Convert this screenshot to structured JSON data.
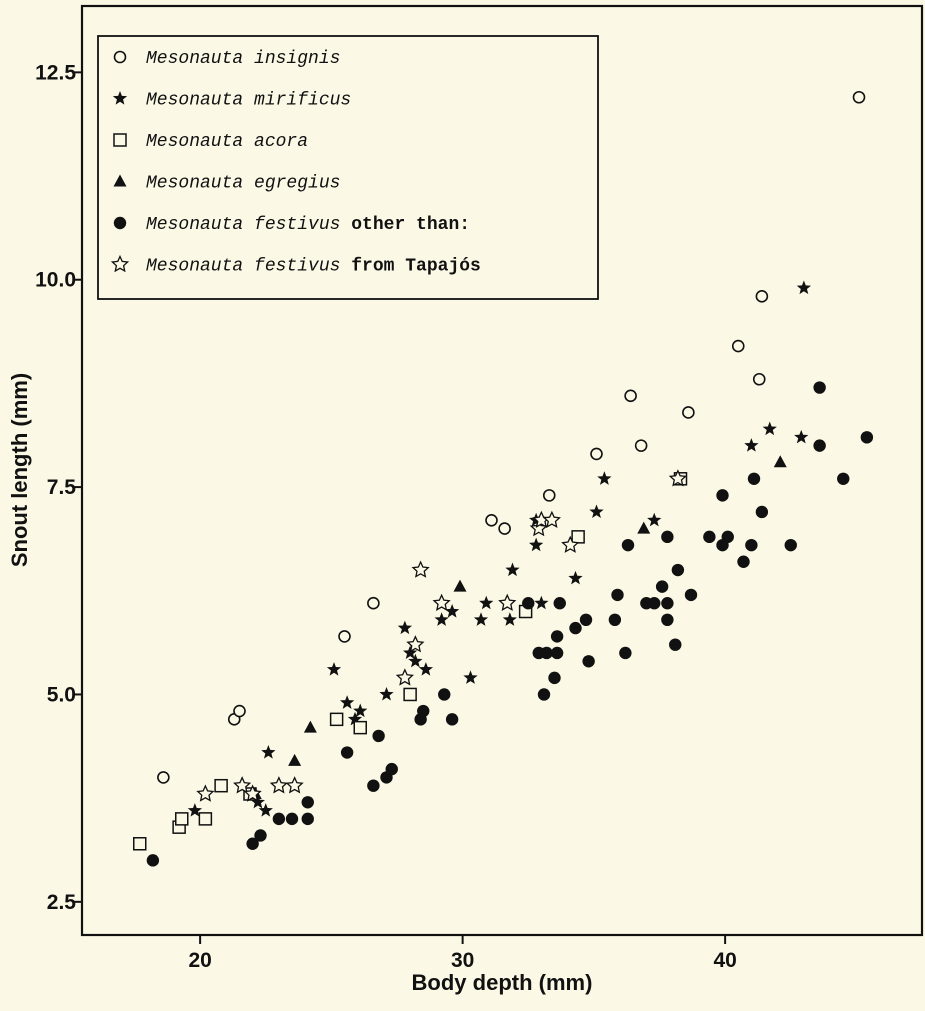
{
  "chart_data": {
    "type": "scatter",
    "xlabel": "Body depth (mm)",
    "ylabel": "Snout length (mm)",
    "xlim": [
      15.5,
      47.5
    ],
    "ylim": [
      2.1,
      13.3
    ],
    "xticks": [
      20,
      30,
      40
    ],
    "yticks": [
      2.5,
      5.0,
      7.5,
      10.0,
      12.5
    ],
    "xtick_labels": [
      "20",
      "30",
      "40"
    ],
    "ytick_labels": [
      "2.5",
      "5.0",
      "7.5",
      "10.0",
      "12.5"
    ],
    "legend_position": "top-left",
    "series": [
      {
        "marker": "open-circle",
        "legend": [
          {
            "text": "Mesonauta insignis",
            "style": "italic"
          }
        ],
        "points": [
          [
            18.6,
            4.0
          ],
          [
            21.3,
            4.7
          ],
          [
            21.5,
            4.8
          ],
          [
            25.5,
            5.7
          ],
          [
            26.6,
            6.1
          ],
          [
            31.1,
            7.1
          ],
          [
            31.6,
            7.0
          ],
          [
            33.3,
            7.4
          ],
          [
            35.1,
            7.9
          ],
          [
            36.4,
            8.6
          ],
          [
            36.8,
            8.0
          ],
          [
            38.6,
            8.4
          ],
          [
            40.5,
            9.2
          ],
          [
            41.3,
            8.8
          ],
          [
            41.4,
            9.8
          ],
          [
            45.1,
            12.2
          ]
        ]
      },
      {
        "marker": "filled-star",
        "legend": [
          {
            "text": "Mesonauta mirificus",
            "style": "italic"
          }
        ],
        "points": [
          [
            19.8,
            3.6
          ],
          [
            22.2,
            3.7
          ],
          [
            22.5,
            3.6
          ],
          [
            22.6,
            4.3
          ],
          [
            25.1,
            5.3
          ],
          [
            25.6,
            4.9
          ],
          [
            25.9,
            4.7
          ],
          [
            26.1,
            4.8
          ],
          [
            27.1,
            5.0
          ],
          [
            27.8,
            5.8
          ],
          [
            28.0,
            5.5
          ],
          [
            28.2,
            5.4
          ],
          [
            28.6,
            5.3
          ],
          [
            29.2,
            5.9
          ],
          [
            29.6,
            6.0
          ],
          [
            30.3,
            5.2
          ],
          [
            30.7,
            5.9
          ],
          [
            30.9,
            6.1
          ],
          [
            31.9,
            6.5
          ],
          [
            31.8,
            5.9
          ],
          [
            32.8,
            6.8
          ],
          [
            32.8,
            7.1
          ],
          [
            33.0,
            6.1
          ],
          [
            34.3,
            6.4
          ],
          [
            35.1,
            7.2
          ],
          [
            35.4,
            7.6
          ],
          [
            37.3,
            7.1
          ],
          [
            41.0,
            8.0
          ],
          [
            41.7,
            8.2
          ],
          [
            42.9,
            8.1
          ],
          [
            43.0,
            9.9
          ]
        ]
      },
      {
        "marker": "open-square",
        "legend": [
          {
            "text": "Mesonauta acora",
            "style": "italic"
          }
        ],
        "points": [
          [
            17.7,
            3.2
          ],
          [
            19.2,
            3.4
          ],
          [
            19.3,
            3.5
          ],
          [
            20.2,
            3.5
          ],
          [
            20.8,
            3.9
          ],
          [
            21.9,
            3.8
          ],
          [
            25.2,
            4.7
          ],
          [
            26.1,
            4.6
          ],
          [
            28.0,
            5.0
          ],
          [
            32.4,
            6.0
          ],
          [
            34.4,
            6.9
          ],
          [
            38.3,
            7.6
          ]
        ]
      },
      {
        "marker": "filled-triangle",
        "legend": [
          {
            "text": "Mesonauta egregius",
            "style": "italic"
          }
        ],
        "points": [
          [
            22.1,
            3.8
          ],
          [
            23.6,
            4.2
          ],
          [
            24.2,
            4.6
          ],
          [
            29.9,
            6.3
          ],
          [
            36.9,
            7.0
          ],
          [
            42.1,
            7.8
          ]
        ]
      },
      {
        "marker": "filled-circle",
        "legend": [
          {
            "text": "Mesonauta festivus",
            "style": "italic"
          },
          {
            "text": " other than:",
            "style": "bold"
          }
        ],
        "points": [
          [
            18.2,
            3.0
          ],
          [
            22.0,
            3.2
          ],
          [
            22.3,
            3.3
          ],
          [
            23.0,
            3.5
          ],
          [
            23.5,
            3.5
          ],
          [
            24.1,
            3.7
          ],
          [
            24.1,
            3.5
          ],
          [
            25.6,
            4.3
          ],
          [
            26.6,
            3.9
          ],
          [
            26.8,
            4.5
          ],
          [
            27.1,
            4.0
          ],
          [
            27.3,
            4.1
          ],
          [
            28.4,
            4.7
          ],
          [
            28.5,
            4.8
          ],
          [
            29.3,
            5.0
          ],
          [
            29.6,
            4.7
          ],
          [
            32.5,
            6.1
          ],
          [
            32.9,
            5.5
          ],
          [
            33.1,
            5.0
          ],
          [
            33.2,
            5.5
          ],
          [
            33.5,
            5.2
          ],
          [
            33.6,
            5.7
          ],
          [
            33.6,
            5.5
          ],
          [
            33.7,
            6.1
          ],
          [
            34.3,
            5.8
          ],
          [
            34.7,
            5.9
          ],
          [
            34.8,
            5.4
          ],
          [
            35.8,
            5.9
          ],
          [
            35.9,
            6.2
          ],
          [
            36.2,
            5.5
          ],
          [
            36.3,
            6.8
          ],
          [
            37.0,
            6.1
          ],
          [
            37.3,
            6.1
          ],
          [
            37.6,
            6.3
          ],
          [
            37.8,
            6.1
          ],
          [
            37.8,
            5.9
          ],
          [
            37.8,
            6.9
          ],
          [
            38.2,
            6.5
          ],
          [
            38.1,
            5.6
          ],
          [
            38.7,
            6.2
          ],
          [
            39.4,
            6.9
          ],
          [
            39.9,
            6.8
          ],
          [
            39.9,
            7.4
          ],
          [
            40.1,
            6.9
          ],
          [
            40.7,
            6.6
          ],
          [
            41.0,
            6.8
          ],
          [
            41.1,
            7.6
          ],
          [
            41.4,
            7.2
          ],
          [
            42.5,
            6.8
          ],
          [
            43.6,
            8.0
          ],
          [
            43.6,
            8.7
          ],
          [
            44.5,
            7.6
          ],
          [
            45.4,
            8.1
          ]
        ]
      },
      {
        "marker": "open-star",
        "legend": [
          {
            "text": "Mesonauta festivus",
            "style": "italic"
          },
          {
            "text": " from Tapajós",
            "style": "bold"
          }
        ],
        "points": [
          [
            20.2,
            3.8
          ],
          [
            21.6,
            3.9
          ],
          [
            22.0,
            3.8
          ],
          [
            23.0,
            3.9
          ],
          [
            23.6,
            3.9
          ],
          [
            27.8,
            5.2
          ],
          [
            28.2,
            5.6
          ],
          [
            28.4,
            6.5
          ],
          [
            29.2,
            6.1
          ],
          [
            31.7,
            6.1
          ],
          [
            32.9,
            7.0
          ],
          [
            33.0,
            7.1
          ],
          [
            33.4,
            7.1
          ],
          [
            34.1,
            6.8
          ],
          [
            38.2,
            7.6
          ]
        ]
      }
    ]
  }
}
